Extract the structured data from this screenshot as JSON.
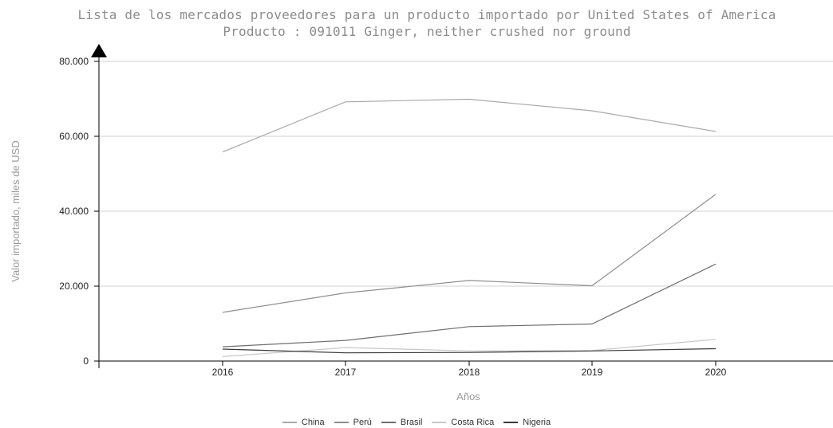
{
  "chart_data": {
    "type": "line",
    "title": "Lista de los mercados proveedores para un producto importado por United States of America",
    "subtitle": "Producto : 091011 Ginger, neither crushed nor ground",
    "xlabel": "Años",
    "ylabel": "Valor importado, miles de USD",
    "categories": [
      "2016",
      "2017",
      "2018",
      "2019",
      "2020"
    ],
    "ylim": [
      0,
      80000
    ],
    "yticks": [
      {
        "value": 0,
        "label": "0"
      },
      {
        "value": 20000,
        "label": "20.000"
      },
      {
        "value": 40000,
        "label": "40.000"
      },
      {
        "value": 60000,
        "label": "60.000"
      },
      {
        "value": 80000,
        "label": "80.000"
      }
    ],
    "grid": true,
    "legend": "bottom",
    "series": [
      {
        "name": "China",
        "color": "#a8a8a8",
        "values": [
          55800,
          69200,
          69900,
          66800,
          61300
        ]
      },
      {
        "name": "Perú",
        "color": "#8e8e8e",
        "values": [
          13000,
          18200,
          21500,
          20100,
          44500
        ]
      },
      {
        "name": "Brasil",
        "color": "#6e6e6e",
        "values": [
          3800,
          5500,
          9200,
          9900,
          25900
        ]
      },
      {
        "name": "Costa Rica",
        "color": "#c8c8c8",
        "values": [
          1200,
          3600,
          2700,
          2800,
          5800
        ]
      },
      {
        "name": "Nigeria",
        "color": "#3a3a3a",
        "values": [
          3200,
          2200,
          2300,
          2700,
          3300
        ]
      }
    ]
  }
}
